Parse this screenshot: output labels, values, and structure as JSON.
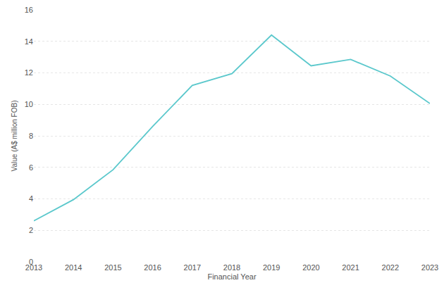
{
  "chart_data": {
    "type": "line",
    "x_label": "Financial Year",
    "y_label": "Value (A$ million FOB)",
    "categories": [
      "2013",
      "2014",
      "2015",
      "2016",
      "2017",
      "2018",
      "2019",
      "2020",
      "2021",
      "2022",
      "2023"
    ],
    "values": [
      2.6,
      3.95,
      5.85,
      8.6,
      11.2,
      11.95,
      14.4,
      12.45,
      12.85,
      11.8,
      10.05
    ],
    "color": "#5bc8cc",
    "ylim": [
      0,
      16
    ],
    "yticks": [
      0,
      2,
      4,
      6,
      8,
      10,
      12,
      14,
      16
    ],
    "grid": true
  }
}
